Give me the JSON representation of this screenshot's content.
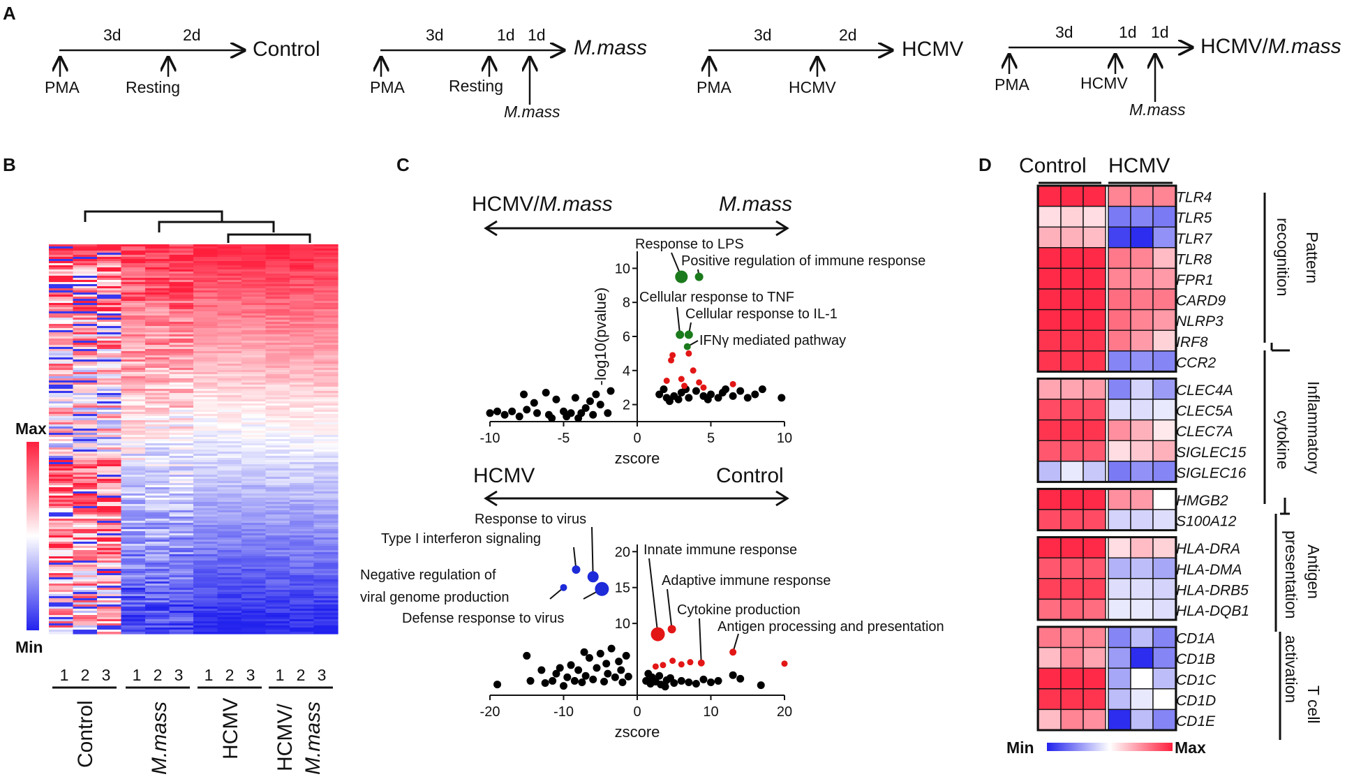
{
  "panel_labels": [
    "A",
    "B",
    "C",
    "D"
  ],
  "panel_a": {
    "groups": [
      {
        "periods": [
          "3d",
          "2d"
        ],
        "result": "Control",
        "result_italic": false,
        "events": [
          "PMA",
          "Resting"
        ],
        "mmass_label": null
      },
      {
        "periods": [
          "3d",
          "1d",
          "1d"
        ],
        "result": "M.mass",
        "result_italic": true,
        "events": [
          "PMA",
          "Resting"
        ],
        "mmass_label": "M.mass"
      },
      {
        "periods": [
          "3d",
          "2d"
        ],
        "result": "HCMV",
        "result_italic": false,
        "events": [
          "PMA",
          "HCMV"
        ],
        "mmass_label": null
      },
      {
        "periods": [
          "3d",
          "1d",
          "1d"
        ],
        "result": "HCMV/",
        "result_suffix": "M.mass",
        "result_italic": false,
        "events": [
          "PMA",
          "HCMV"
        ],
        "mmass_label": "M.mass"
      }
    ]
  },
  "panel_b": {
    "scale_max": "Max",
    "scale_min": "Min",
    "replicates": [
      "1",
      "2",
      "3"
    ],
    "groups": [
      {
        "name": "Control",
        "italic": false
      },
      {
        "name": "M.mass",
        "italic": true
      },
      {
        "name": "HCMV",
        "italic": false
      },
      {
        "name_line1": "HCMV/",
        "name_line2": "M.mass",
        "italic": false
      }
    ],
    "colors": {
      "red": "#ff1f3d",
      "blue": "#2222ee",
      "white": "#ffffff"
    }
  },
  "chart_data": [
    {
      "type": "scatter",
      "title": "",
      "left_label_prefix": "HCMV/",
      "left_label_italic": "M.mass",
      "right_label": "M.mass",
      "xlabel": "zscore",
      "ylabel": "-log10(pvalue)",
      "xlim": [
        -10,
        10
      ],
      "ylim": [
        1,
        11
      ],
      "xticks": [
        -10,
        -5,
        0,
        5,
        10
      ],
      "yticks": [
        2,
        4,
        6,
        8,
        10
      ],
      "annotations": [
        {
          "text": "Response to LPS",
          "x": 3.0,
          "y": 9.5,
          "color": "#1b7a1b",
          "size": 9
        },
        {
          "text": "Positive regulation of immune response",
          "x": 4.2,
          "y": 9.5,
          "color": "#1b7a1b",
          "size": 6
        },
        {
          "text": "Cellular response to TNF",
          "x": 2.9,
          "y": 6.1,
          "color": "#1b7a1b",
          "size": 6
        },
        {
          "text": "Cellular response to IL-1",
          "x": 3.5,
          "y": 6.1,
          "color": "#1b7a1b",
          "size": 6
        },
        {
          "text": "IFNγ mediated pathway",
          "x": 3.4,
          "y": 5.4,
          "color": "#1b7a1b",
          "size": 5
        }
      ],
      "red_points": [
        [
          2.4,
          4.9
        ],
        [
          2.3,
          4.6
        ],
        [
          2.0,
          3.4
        ],
        [
          3.5,
          5.0
        ],
        [
          3.8,
          4.0
        ],
        [
          3.0,
          3.5
        ],
        [
          4.2,
          3.3
        ],
        [
          4.5,
          3.0
        ],
        [
          3.2,
          3.1
        ],
        [
          6.5,
          3.2
        ]
      ],
      "black_points": [
        [
          -10.0,
          1.5
        ],
        [
          -9.0,
          1.4
        ],
        [
          -8.5,
          1.6
        ],
        [
          -8.0,
          1.3
        ],
        [
          -7.5,
          1.7
        ],
        [
          -7.0,
          2.1
        ],
        [
          -6.8,
          1.5
        ],
        [
          -6.0,
          1.4
        ],
        [
          -5.5,
          2.3
        ],
        [
          -5.0,
          1.6
        ],
        [
          -4.8,
          1.3
        ],
        [
          -4.5,
          1.5
        ],
        [
          -4.0,
          1.2
        ],
        [
          -3.5,
          1.8
        ],
        [
          -3.0,
          1.4
        ],
        [
          -2.5,
          2.0
        ],
        [
          -2.0,
          1.5
        ],
        [
          -1.8,
          2.8
        ],
        [
          -7.7,
          2.6
        ],
        [
          -6.2,
          2.7
        ],
        [
          -4.2,
          2.4
        ],
        [
          -3.2,
          2.2
        ],
        [
          -2.8,
          2.6
        ],
        [
          -9.5,
          1.6
        ],
        [
          -5.8,
          1.2
        ],
        [
          -3.8,
          1.5
        ],
        [
          1.5,
          2.6
        ],
        [
          2.0,
          2.4
        ],
        [
          2.5,
          2.5
        ],
        [
          3.0,
          2.7
        ],
        [
          3.5,
          2.4
        ],
        [
          4.0,
          2.8
        ],
        [
          4.5,
          2.5
        ],
        [
          5.0,
          2.6
        ],
        [
          5.5,
          2.4
        ],
        [
          6.0,
          2.9
        ],
        [
          6.5,
          2.5
        ],
        [
          7.0,
          2.8
        ],
        [
          8.0,
          2.6
        ],
        [
          8.5,
          2.9
        ],
        [
          9.8,
          2.4
        ],
        [
          1.8,
          2.9
        ],
        [
          2.2,
          2.2
        ],
        [
          2.8,
          2.3
        ],
        [
          3.3,
          2.9
        ],
        [
          4.8,
          2.3
        ],
        [
          5.8,
          2.7
        ],
        [
          7.5,
          2.4
        ]
      ]
    },
    {
      "type": "scatter",
      "title": "",
      "left_label": "HCMV",
      "right_label": "Control",
      "xlabel": "zscore",
      "ylabel": "",
      "xlim": [
        -20,
        20
      ],
      "ylim": [
        0,
        21
      ],
      "xticks": [
        -20,
        -10,
        0,
        10,
        20
      ],
      "yticks": [
        10,
        15,
        20
      ],
      "annotations": [
        {
          "text": "Response to virus",
          "x": -6,
          "y": 16.5,
          "color": "#1d2bd8",
          "size": 8
        },
        {
          "text": "Type I interferon signaling",
          "x": -8.3,
          "y": 17.5,
          "color": "#1d2bd8",
          "size": 6
        },
        {
          "text": "Negative regulation of",
          "text2": "viral genome production",
          "x": -10,
          "y": 15,
          "color": "#1d2bd8",
          "size": 5
        },
        {
          "text": "Defense response to virus",
          "x": -4.8,
          "y": 14.8,
          "color": "#1d2bd8",
          "size": 10
        },
        {
          "text": "Innate immune response",
          "x": 2.8,
          "y": 8.5,
          "color": "#e31616",
          "size": 10
        },
        {
          "text": "Adaptive immune response",
          "x": 4.7,
          "y": 9.2,
          "color": "#e31616",
          "size": 6
        },
        {
          "text": "Cytokine production",
          "x": 8.7,
          "y": 4.5,
          "color": "#e31616",
          "size": 5
        },
        {
          "text": "Antigen processing and presentation",
          "x": 13,
          "y": 6.0,
          "color": "#e31616",
          "size": 5
        }
      ],
      "red_points": [
        [
          2.5,
          4.0
        ],
        [
          3.5,
          4.2
        ],
        [
          4.8,
          4.8
        ],
        [
          6.0,
          4.3
        ],
        [
          7.2,
          4.6
        ],
        [
          20.0,
          4.4
        ]
      ],
      "black_points": [
        [
          -19,
          1.5
        ],
        [
          -15,
          5.5
        ],
        [
          -14.5,
          2.0
        ],
        [
          -13.0,
          3.5
        ],
        [
          -12.5,
          1.7
        ],
        [
          -11.5,
          2.0
        ],
        [
          -11.0,
          3.0
        ],
        [
          -10,
          1.3
        ],
        [
          -9.5,
          2.5
        ],
        [
          -9.0,
          4.2
        ],
        [
          -8.5,
          2.0
        ],
        [
          -8.0,
          3.5
        ],
        [
          -7.5,
          1.8
        ],
        [
          -7.0,
          2.7
        ],
        [
          -6.5,
          5.2
        ],
        [
          -6.0,
          2.2
        ],
        [
          -5.5,
          3.8
        ],
        [
          -5.0,
          5.8
        ],
        [
          -4.5,
          1.9
        ],
        [
          -4.0,
          3.0
        ],
        [
          -3.5,
          6.5
        ],
        [
          -3.0,
          2.5
        ],
        [
          -2.5,
          4.7
        ],
        [
          -2.2,
          3.5
        ],
        [
          -2.0,
          1.8
        ],
        [
          -1.5,
          5.5
        ],
        [
          -1.2,
          2.6
        ],
        [
          -10.5,
          3.8
        ],
        [
          -7.2,
          6.0
        ],
        [
          -4.2,
          4.4
        ],
        [
          1.2,
          2.0
        ],
        [
          1.8,
          1.6
        ],
        [
          2.5,
          1.9
        ],
        [
          3.2,
          1.5
        ],
        [
          4.0,
          2.1
        ],
        [
          5.0,
          1.7
        ],
        [
          6.0,
          2.0
        ],
        [
          7.0,
          1.8
        ],
        [
          8.0,
          1.6
        ],
        [
          9.0,
          2.2
        ],
        [
          10.0,
          1.8
        ],
        [
          11.0,
          2.0
        ],
        [
          13.0,
          2.8
        ],
        [
          14.0,
          2.3
        ],
        [
          16.8,
          1.4
        ],
        [
          1.5,
          3.0
        ],
        [
          2.0,
          2.5
        ],
        [
          3.0,
          2.7
        ],
        [
          3.8,
          1.2
        ],
        [
          4.5,
          2.4
        ]
      ]
    }
  ],
  "panel_d": {
    "header_left": "Control",
    "header_right": "HCMV",
    "scale_min": "Min",
    "scale_max": "Max",
    "genes": [
      "TLR4",
      "TLR5",
      "TLR7",
      "TLR8",
      "FPR1",
      "CARD9",
      "NLRP3",
      "IRF8",
      "CCR2",
      "CLEC4A",
      "CLEC5A",
      "CLEC7A",
      "SIGLEC15",
      "SIGLEC16",
      "HMGB2",
      "S100A12",
      "HLA-DRA",
      "HLA-DMA",
      "HLA-DRB5",
      "HLA-DQB1",
      "CD1A",
      "CD1B",
      "CD1C",
      "CD1D",
      "CD1E"
    ],
    "gene_blocks": [
      9,
      5,
      2,
      4,
      5
    ],
    "categories": [
      {
        "line1": "Pattern",
        "line2": "recognition"
      },
      {
        "line1": "Inflammatory",
        "line2": "cytokine"
      },
      {
        "line1": "Antigen",
        "line2": "presentation"
      },
      {
        "line1": "T cell",
        "line2": "activation"
      }
    ],
    "values": [
      [
        0.95,
        0.95,
        0.95,
        0.55,
        0.55,
        0.55
      ],
      [
        0.15,
        0.2,
        0.15,
        -0.6,
        -0.55,
        -0.6
      ],
      [
        0.35,
        0.35,
        0.3,
        -0.85,
        -0.95,
        -0.5
      ],
      [
        0.95,
        0.95,
        0.95,
        0.6,
        0.55,
        0.3
      ],
      [
        0.95,
        0.95,
        0.95,
        0.55,
        0.5,
        0.45
      ],
      [
        0.95,
        0.95,
        0.95,
        0.65,
        0.6,
        0.6
      ],
      [
        0.95,
        0.95,
        0.95,
        0.65,
        0.55,
        0.45
      ],
      [
        0.9,
        0.9,
        0.9,
        0.6,
        0.45,
        0.2
      ],
      [
        0.9,
        0.9,
        0.9,
        -0.55,
        -0.5,
        -0.55
      ],
      [
        0.4,
        0.4,
        0.45,
        -0.55,
        -0.2,
        -0.45
      ],
      [
        0.8,
        0.8,
        0.8,
        -0.15,
        -0.15,
        -0.1
      ],
      [
        0.9,
        0.9,
        0.9,
        0.5,
        0.35,
        0.1
      ],
      [
        0.75,
        0.75,
        0.75,
        0.15,
        0.25,
        0.35
      ],
      [
        -0.3,
        -0.1,
        -0.25,
        -0.6,
        -0.5,
        -0.55
      ],
      [
        0.95,
        0.95,
        0.95,
        0.5,
        0.45,
        0.0
      ],
      [
        0.8,
        0.8,
        0.8,
        -0.2,
        -0.2,
        -0.15
      ],
      [
        0.95,
        0.95,
        0.95,
        0.15,
        0.3,
        0.2
      ],
      [
        0.75,
        0.75,
        0.75,
        -0.35,
        -0.3,
        -0.4
      ],
      [
        0.85,
        0.85,
        0.85,
        -0.15,
        -0.15,
        -0.2
      ],
      [
        0.65,
        0.7,
        0.65,
        -0.1,
        -0.1,
        -0.15
      ],
      [
        0.6,
        0.55,
        0.55,
        -0.55,
        -0.3,
        -0.55
      ],
      [
        0.3,
        0.55,
        0.4,
        -0.45,
        -0.95,
        -0.55
      ],
      [
        0.95,
        0.95,
        0.95,
        -0.4,
        0.0,
        -0.3
      ],
      [
        0.9,
        0.9,
        0.9,
        -0.3,
        -0.1,
        0.0
      ],
      [
        0.3,
        0.55,
        0.5,
        -0.95,
        -0.3,
        -0.55
      ]
    ]
  }
}
